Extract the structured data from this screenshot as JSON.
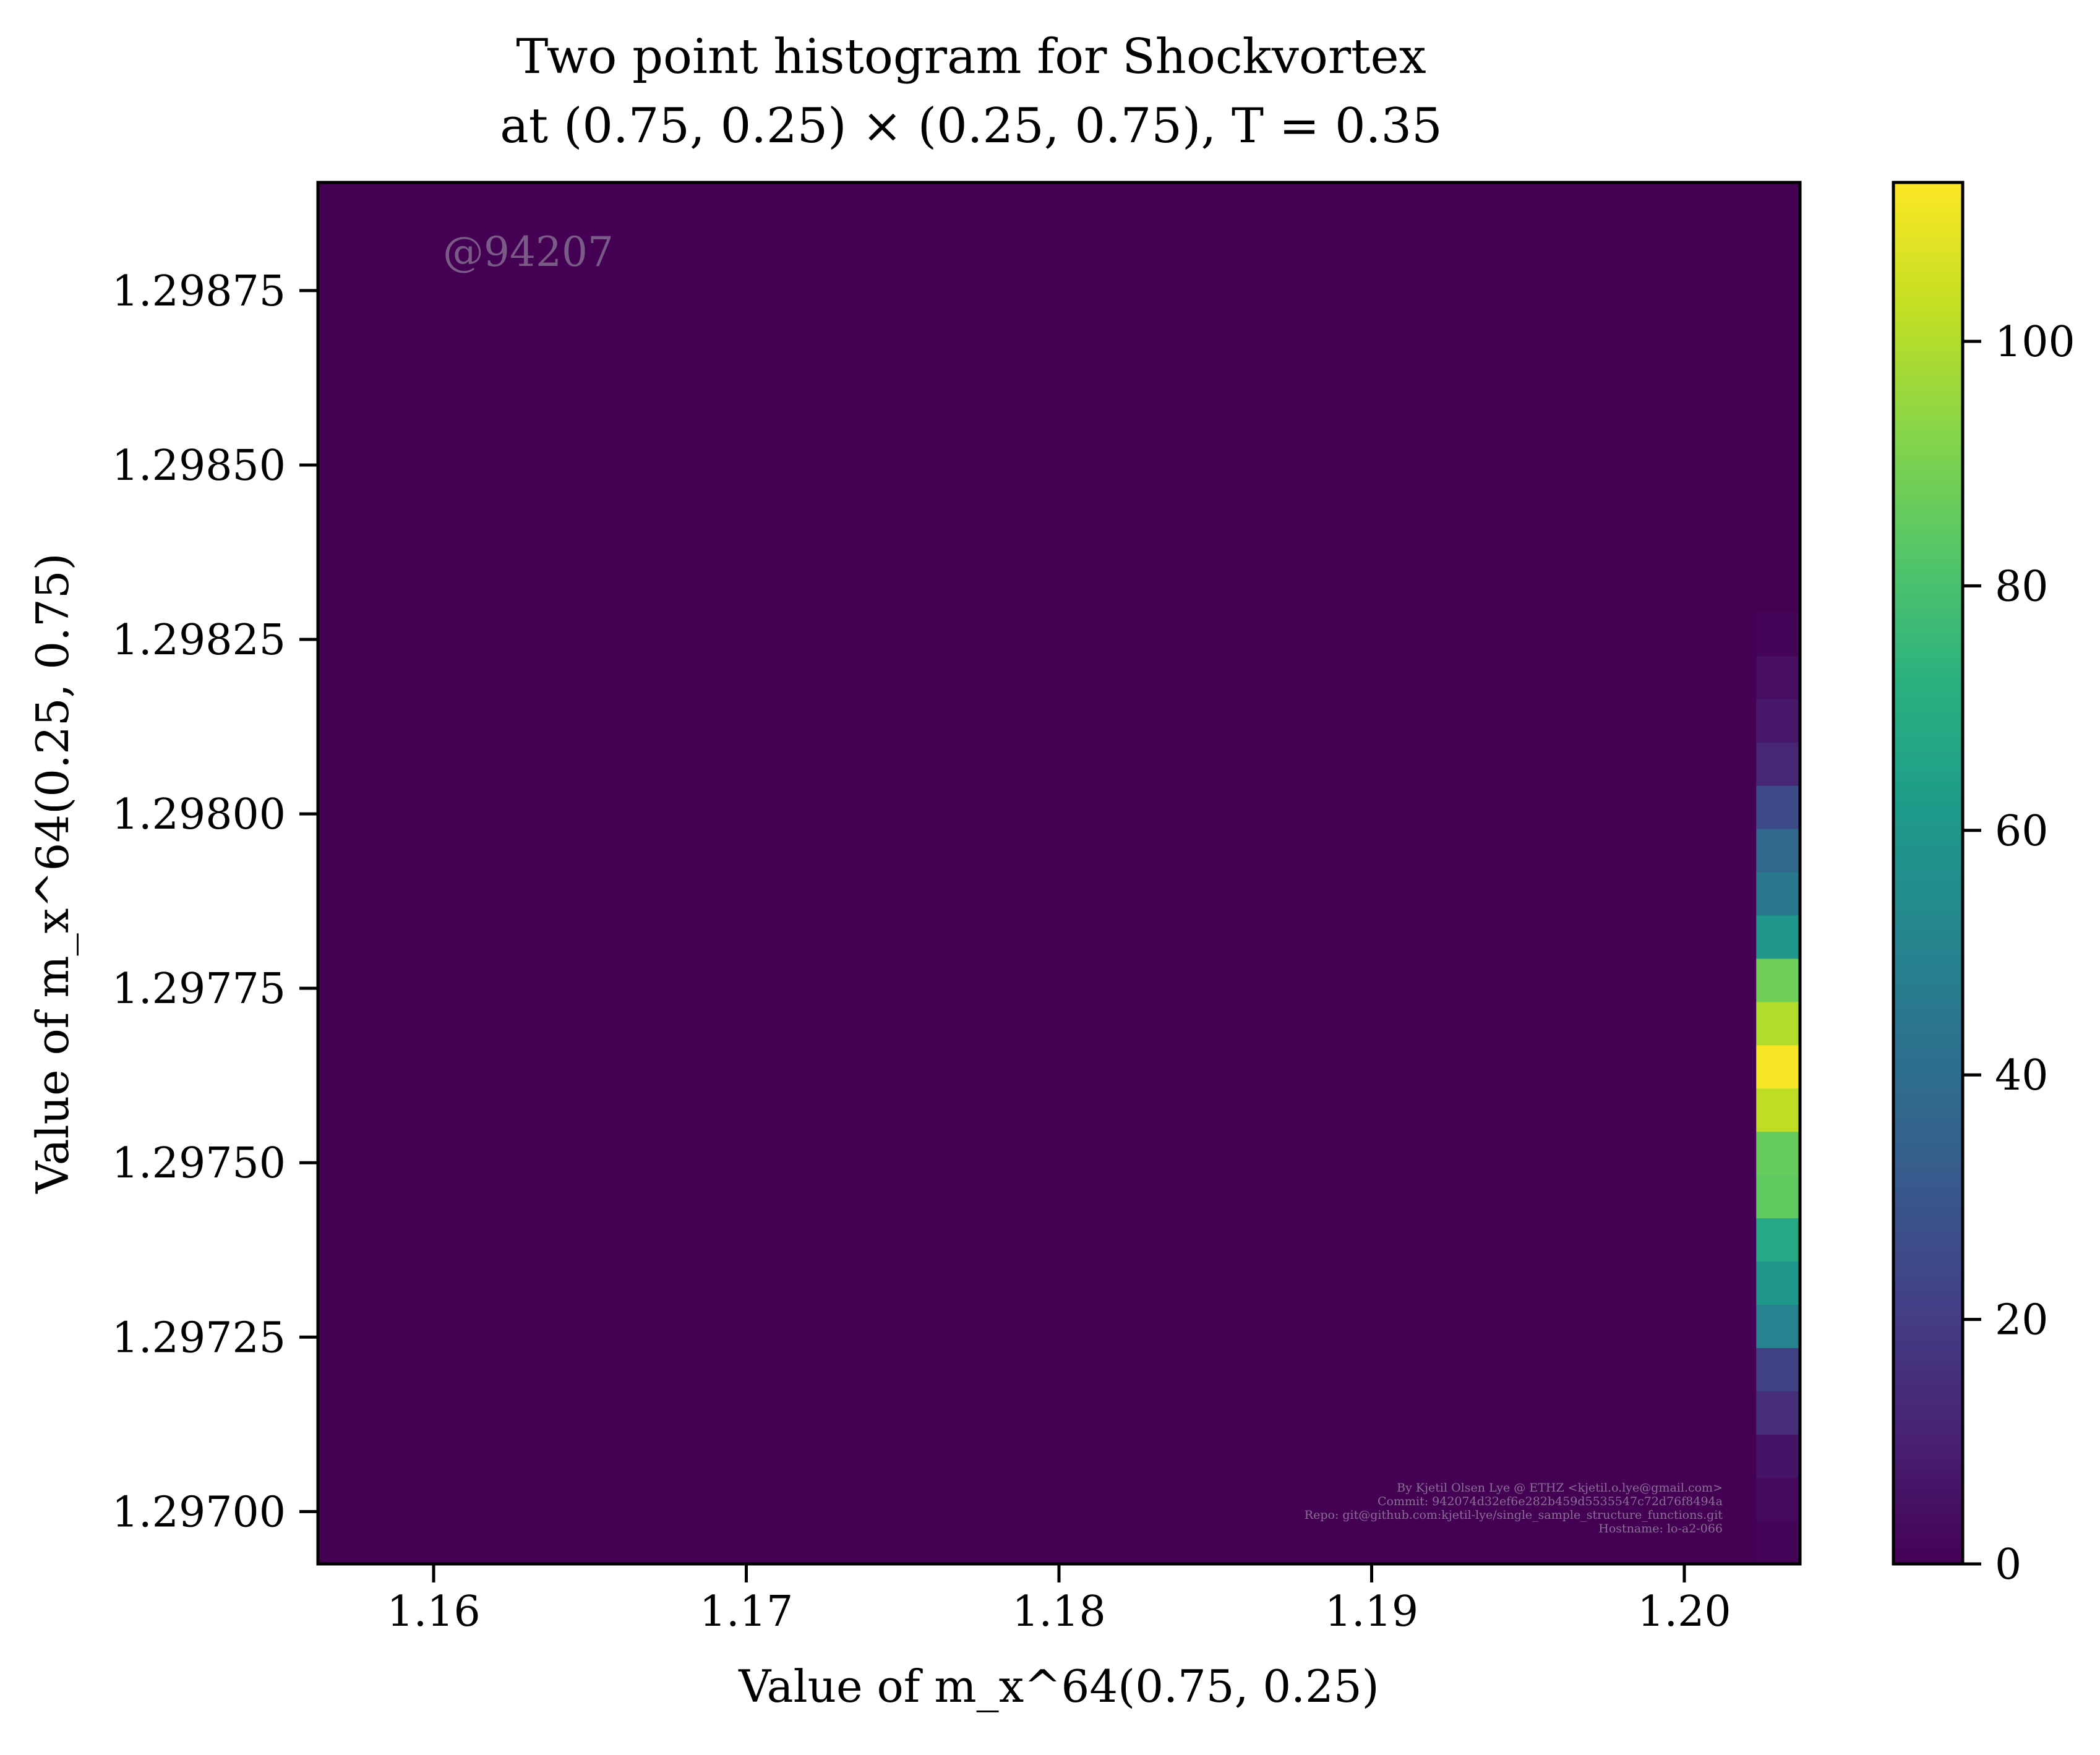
{
  "chart_data": {
    "type": "heatmap",
    "title": [
      "Two point histogram for Shockvortex",
      "at (0.75, 0.25) × (0.25, 0.75), T = 0.35"
    ],
    "xlabel": "Value of m_x^64(0.75, 0.25)",
    "ylabel": "Value of m_x^64(0.25, 0.75)",
    "xlim": [
      1.1563,
      1.2037
    ],
    "ylim": [
      1.296925,
      1.298905
    ],
    "xticks": [
      1.16,
      1.17,
      1.18,
      1.19,
      1.2
    ],
    "xtick_labels": [
      "1.16",
      "1.17",
      "1.18",
      "1.19",
      "1.20"
    ],
    "yticks": [
      1.297,
      1.29725,
      1.2975,
      1.29775,
      1.298,
      1.29825,
      1.2985,
      1.29875
    ],
    "ytick_labels": [
      "1.29700",
      "1.29725",
      "1.29750",
      "1.29775",
      "1.29800",
      "1.29825",
      "1.29850",
      "1.29875"
    ],
    "colorbar": {
      "min": 0,
      "max": 113,
      "ticks": [
        0,
        20,
        40,
        60,
        80,
        100
      ],
      "tick_labels": [
        "0",
        "20",
        "40",
        "60",
        "80",
        "100"
      ],
      "colormap": "viridis"
    },
    "background_value": 0,
    "column": {
      "x_range": [
        1.2023,
        1.2037
      ],
      "bin_height": 6.19e-05,
      "bins": [
        {
          "y": 1.296925,
          "count": 1
        },
        {
          "y": 1.296987,
          "count": 3
        },
        {
          "y": 1.297049,
          "count": 6
        },
        {
          "y": 1.297111,
          "count": 15
        },
        {
          "y": 1.297173,
          "count": 22
        },
        {
          "y": 1.297235,
          "count": 50
        },
        {
          "y": 1.297297,
          "count": 60
        },
        {
          "y": 1.297359,
          "count": 68
        },
        {
          "y": 1.297421,
          "count": 85
        },
        {
          "y": 1.297483,
          "count": 86
        },
        {
          "y": 1.297545,
          "count": 102
        },
        {
          "y": 1.297607,
          "count": 112
        },
        {
          "y": 1.297669,
          "count": 100
        },
        {
          "y": 1.297731,
          "count": 88
        },
        {
          "y": 1.297793,
          "count": 60
        },
        {
          "y": 1.297855,
          "count": 45
        },
        {
          "y": 1.297917,
          "count": 38
        },
        {
          "y": 1.297979,
          "count": 26
        },
        {
          "y": 1.298041,
          "count": 12
        },
        {
          "y": 1.298103,
          "count": 7
        },
        {
          "y": 1.298165,
          "count": 4
        },
        {
          "y": 1.298227,
          "count": 1
        }
      ]
    },
    "watermark": "@94207",
    "credit_lines": [
      "By Kjetil Olsen Lye @ ETHZ <kjetil.o.lye@gmail.com>",
      "Commit: 942074d32ef6e282b459d5535547c72d76f8494a",
      "Repo: git@github.com:kjetil-lye/single_sample_structure_functions.git",
      "Hostname: lo-a2-066"
    ]
  }
}
